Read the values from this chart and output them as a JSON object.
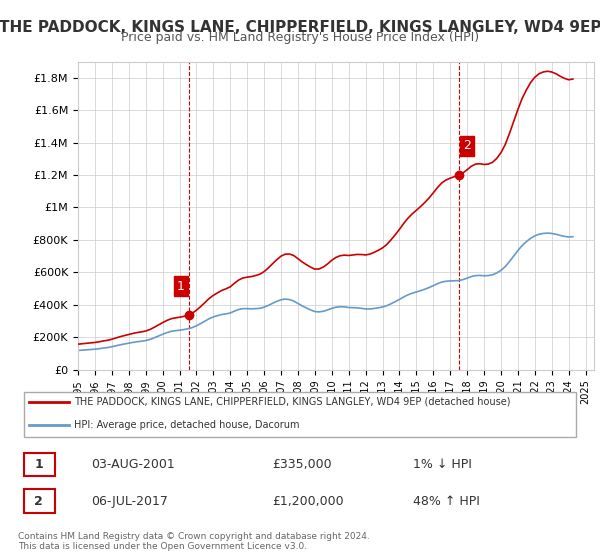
{
  "title": "THE PADDOCK, KINGS LANE, CHIPPERFIELD, KINGS LANGLEY, WD4 9EP",
  "subtitle": "Price paid vs. HM Land Registry's House Price Index (HPI)",
  "title_fontsize": 11,
  "subtitle_fontsize": 9,
  "background_color": "#ffffff",
  "plot_bg_color": "#ffffff",
  "grid_color": "#cccccc",
  "hpi_color": "#6699cc",
  "price_color": "#cc0000",
  "dashed_color": "#cc0000",
  "ylim": [
    0,
    1900000
  ],
  "yticks": [
    0,
    200000,
    400000,
    600000,
    800000,
    1000000,
    1200000,
    1400000,
    1600000,
    1800000
  ],
  "ytick_labels": [
    "£0",
    "£200K",
    "£400K",
    "£600K",
    "£800K",
    "£1M",
    "£1.2M",
    "£1.4M",
    "£1.6M",
    "£1.8M"
  ],
  "sale1_year": 2001.58,
  "sale1_price": 335000,
  "sale2_year": 2017.5,
  "sale2_price": 1200000,
  "legend_line1": "THE PADDOCK, KINGS LANE, CHIPPERFIELD, KINGS LANGLEY, WD4 9EP (detached house)",
  "legend_line2": "HPI: Average price, detached house, Dacorum",
  "table_row1_num": "1",
  "table_row1_date": "03-AUG-2001",
  "table_row1_price": "£335,000",
  "table_row1_hpi": "1% ↓ HPI",
  "table_row2_num": "2",
  "table_row2_date": "06-JUL-2017",
  "table_row2_price": "£1,200,000",
  "table_row2_hpi": "48% ↑ HPI",
  "footnote": "Contains HM Land Registry data © Crown copyright and database right 2024.\nThis data is licensed under the Open Government Licence v3.0.",
  "hpi_data_years": [
    1995.0,
    1995.25,
    1995.5,
    1995.75,
    1996.0,
    1996.25,
    1996.5,
    1996.75,
    1997.0,
    1997.25,
    1997.5,
    1997.75,
    1998.0,
    1998.25,
    1998.5,
    1998.75,
    1999.0,
    1999.25,
    1999.5,
    1999.75,
    2000.0,
    2000.25,
    2000.5,
    2000.75,
    2001.0,
    2001.25,
    2001.5,
    2001.75,
    2002.0,
    2002.25,
    2002.5,
    2002.75,
    2003.0,
    2003.25,
    2003.5,
    2003.75,
    2004.0,
    2004.25,
    2004.5,
    2004.75,
    2005.0,
    2005.25,
    2005.5,
    2005.75,
    2006.0,
    2006.25,
    2006.5,
    2006.75,
    2007.0,
    2007.25,
    2007.5,
    2007.75,
    2008.0,
    2008.25,
    2008.5,
    2008.75,
    2009.0,
    2009.25,
    2009.5,
    2009.75,
    2010.0,
    2010.25,
    2010.5,
    2010.75,
    2011.0,
    2011.25,
    2011.5,
    2011.75,
    2012.0,
    2012.25,
    2012.5,
    2012.75,
    2013.0,
    2013.25,
    2013.5,
    2013.75,
    2014.0,
    2014.25,
    2014.5,
    2014.75,
    2015.0,
    2015.25,
    2015.5,
    2015.75,
    2016.0,
    2016.25,
    2016.5,
    2016.75,
    2017.0,
    2017.25,
    2017.5,
    2017.75,
    2018.0,
    2018.25,
    2018.5,
    2018.75,
    2019.0,
    2019.25,
    2019.5,
    2019.75,
    2020.0,
    2020.25,
    2020.5,
    2020.75,
    2021.0,
    2021.25,
    2021.5,
    2021.75,
    2022.0,
    2022.25,
    2022.5,
    2022.75,
    2023.0,
    2023.25,
    2023.5,
    2023.75,
    2024.0,
    2024.25
  ],
  "hpi_data_values": [
    118000,
    120000,
    122000,
    124000,
    126000,
    129000,
    133000,
    136000,
    141000,
    147000,
    153000,
    158000,
    163000,
    168000,
    172000,
    175000,
    179000,
    186000,
    196000,
    207000,
    218000,
    228000,
    236000,
    240000,
    243000,
    247000,
    252000,
    259000,
    270000,
    284000,
    299000,
    314000,
    325000,
    333000,
    340000,
    344000,
    349000,
    361000,
    371000,
    376000,
    376000,
    375000,
    376000,
    378000,
    385000,
    396000,
    409000,
    421000,
    431000,
    435000,
    432000,
    423000,
    408000,
    393000,
    380000,
    368000,
    358000,
    356000,
    360000,
    368000,
    378000,
    385000,
    388000,
    387000,
    383000,
    382000,
    381000,
    378000,
    374000,
    374000,
    377000,
    381000,
    386000,
    394000,
    406000,
    419000,
    433000,
    448000,
    461000,
    471000,
    479000,
    487000,
    496000,
    506000,
    518000,
    530000,
    540000,
    545000,
    547000,
    548000,
    549000,
    555000,
    564000,
    574000,
    580000,
    581000,
    579000,
    580000,
    585000,
    596000,
    612000,
    635000,
    666000,
    700000,
    734000,
    765000,
    789000,
    810000,
    825000,
    835000,
    840000,
    842000,
    840000,
    835000,
    828000,
    822000,
    818000,
    820000
  ],
  "price_line_years": [
    1995.0,
    1995.25,
    1995.5,
    1995.75,
    1996.0,
    1996.25,
    1996.5,
    1996.75,
    1997.0,
    1997.25,
    1997.5,
    1997.75,
    1998.0,
    1998.25,
    1998.5,
    1998.75,
    1999.0,
    1999.25,
    1999.5,
    1999.75,
    2000.0,
    2000.25,
    2000.5,
    2000.75,
    2001.0,
    2001.25,
    2001.5,
    2001.75,
    2002.0,
    2002.25,
    2002.5,
    2002.75,
    2003.0,
    2003.25,
    2003.5,
    2003.75,
    2004.0,
    2004.25,
    2004.5,
    2004.75,
    2005.0,
    2005.25,
    2005.5,
    2005.75,
    2006.0,
    2006.25,
    2006.5,
    2006.75,
    2007.0,
    2007.25,
    2007.5,
    2007.75,
    2008.0,
    2008.25,
    2008.5,
    2008.75,
    2009.0,
    2009.25,
    2009.5,
    2009.75,
    2010.0,
    2010.25,
    2010.5,
    2010.75,
    2011.0,
    2011.25,
    2011.5,
    2011.75,
    2012.0,
    2012.25,
    2012.5,
    2012.75,
    2013.0,
    2013.25,
    2013.5,
    2013.75,
    2014.0,
    2014.25,
    2014.5,
    2014.75,
    2015.0,
    2015.25,
    2015.5,
    2015.75,
    2016.0,
    2016.25,
    2016.5,
    2016.75,
    2017.0,
    2017.25,
    2017.5,
    2017.75,
    2018.0,
    2018.25,
    2018.5,
    2018.75,
    2019.0,
    2019.25,
    2019.5,
    2019.75,
    2020.0,
    2020.25,
    2020.5,
    2020.75,
    2021.0,
    2021.25,
    2021.5,
    2021.75,
    2022.0,
    2022.25,
    2022.5,
    2022.75,
    2023.0,
    2023.25,
    2023.5,
    2023.75,
    2024.0,
    2024.25
  ],
  "price_line_values": [
    null,
    null,
    null,
    null,
    null,
    null,
    null,
    null,
    null,
    null,
    null,
    null,
    null,
    null,
    null,
    null,
    null,
    null,
    null,
    null,
    null,
    null,
    null,
    null,
    null,
    null,
    335000,
    null,
    null,
    null,
    null,
    null,
    null,
    null,
    null,
    null,
    null,
    null,
    null,
    null,
    null,
    null,
    null,
    null,
    null,
    null,
    null,
    null,
    null,
    null,
    null,
    null,
    null,
    null,
    null,
    null,
    null,
    null,
    null,
    null,
    null,
    null,
    null,
    null,
    null,
    null,
    null,
    null,
    null,
    null,
    null,
    null,
    null,
    null,
    null,
    null,
    null,
    null,
    null,
    null,
    null,
    null,
    null,
    null,
    null,
    null,
    null,
    null,
    null,
    1200000,
    null,
    null,
    null,
    null,
    null,
    null,
    null,
    null,
    null,
    null,
    null,
    null,
    null,
    null,
    null,
    null,
    null,
    null,
    null,
    null,
    null,
    null,
    null,
    null,
    null,
    null,
    null,
    null
  ]
}
